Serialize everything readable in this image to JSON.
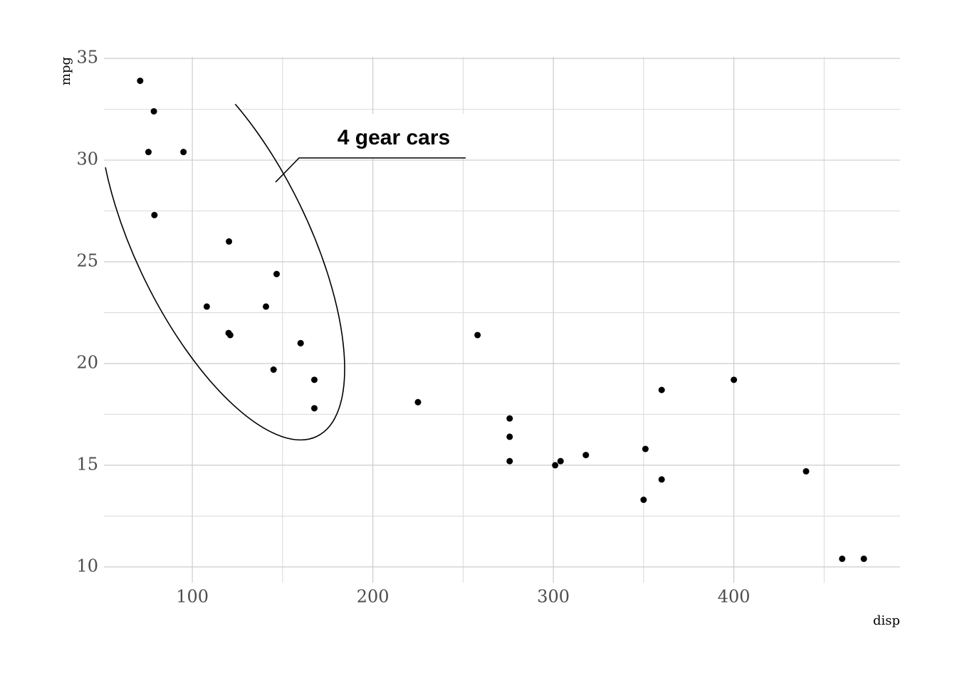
{
  "chart_data": {
    "type": "scatter",
    "x_label": "disp",
    "y_label": "mpg",
    "x": [
      160,
      160,
      108,
      258,
      360,
      225,
      360,
      146.7,
      140.8,
      167.6,
      167.6,
      275.8,
      275.8,
      275.8,
      472,
      460,
      440,
      78.7,
      75.7,
      71.1,
      120.1,
      318,
      304,
      350,
      400,
      79,
      120.3,
      95.1,
      351,
      145,
      301,
      121
    ],
    "values": [
      21,
      21,
      22.8,
      21.4,
      18.7,
      18.1,
      14.3,
      24.4,
      22.8,
      19.2,
      17.8,
      16.4,
      17.3,
      15.2,
      10.4,
      10.4,
      14.7,
      32.4,
      30.4,
      33.9,
      21.5,
      15.5,
      15.2,
      13.3,
      19.2,
      27.3,
      26,
      30.4,
      15.8,
      19.7,
      15,
      21.4
    ],
    "color": "#000000",
    "xlim": [
      51.05,
      492.05
    ],
    "ylim": [
      9.225,
      35.075
    ],
    "xticks": [
      100,
      200,
      300,
      400
    ],
    "yticks": [
      10,
      15,
      20,
      25,
      30,
      35
    ],
    "x_minor_grid": [
      150,
      250,
      350,
      450
    ],
    "y_minor_grid": [
      12.5,
      17.5,
      22.5,
      27.5,
      32.5
    ],
    "grid": true,
    "annotation": "4 gear cars"
  }
}
